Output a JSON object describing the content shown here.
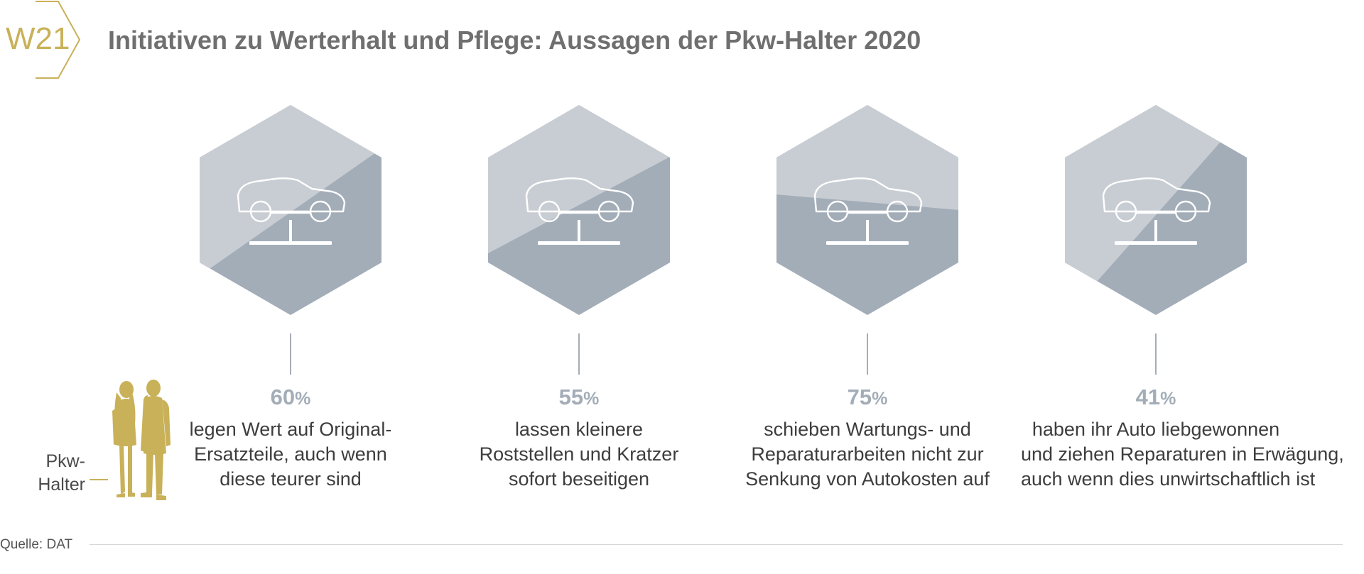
{
  "badge": "W21",
  "title": "Initiativen zu Werterhalt und Pflege: Aussagen der Pkw-Halter 2020",
  "people_label": [
    "Pkw-",
    "Halter"
  ],
  "source": "Quelle: DAT",
  "colors": {
    "gold": "#c9b159",
    "hex_light": "#c8cdd3",
    "hex_dark": "#a3adb8",
    "percent": "#a3adb8",
    "title": "#6f6f6f"
  },
  "chart_data": {
    "type": "bar",
    "title": "Initiativen zu Werterhalt und Pflege: Aussagen der Pkw-Halter 2020",
    "unit": "%",
    "categories": [
      "legen Wert auf Original-Ersatzteile, auch wenn diese teurer sind",
      "lassen kleinere Roststellen und Kratzer sofort beseitigen",
      "schieben Wartungs- und Reparaturarbeiten nicht zur Senkung von Autokosten auf",
      "haben ihr Auto liebgewonnen und ziehen Reparaturen in Erwägung, auch wenn dies unwirtschaftlich ist"
    ],
    "values": [
      60,
      55,
      75,
      41
    ],
    "items": [
      {
        "value": 60,
        "unit": "%",
        "lines": [
          "legen Wert auf Original-",
          "Ersatzteile, auch wenn",
          "diese teurer sind"
        ]
      },
      {
        "value": 55,
        "unit": "%",
        "lines": [
          "lassen kleinere",
          "Roststellen und Kratzer",
          "sofort beseitigen"
        ]
      },
      {
        "value": 75,
        "unit": "%",
        "lines": [
          "schieben Wartungs- und",
          "Reparaturarbeiten nicht zur",
          "Senkung von Autokosten auf"
        ]
      },
      {
        "value": 41,
        "unit": "%",
        "lines": [
          "haben ihr Auto liebgewonnen",
          "und ziehen Reparaturen in Erwägung,",
          "auch wenn dies unwirtschaftlich ist"
        ]
      }
    ]
  }
}
